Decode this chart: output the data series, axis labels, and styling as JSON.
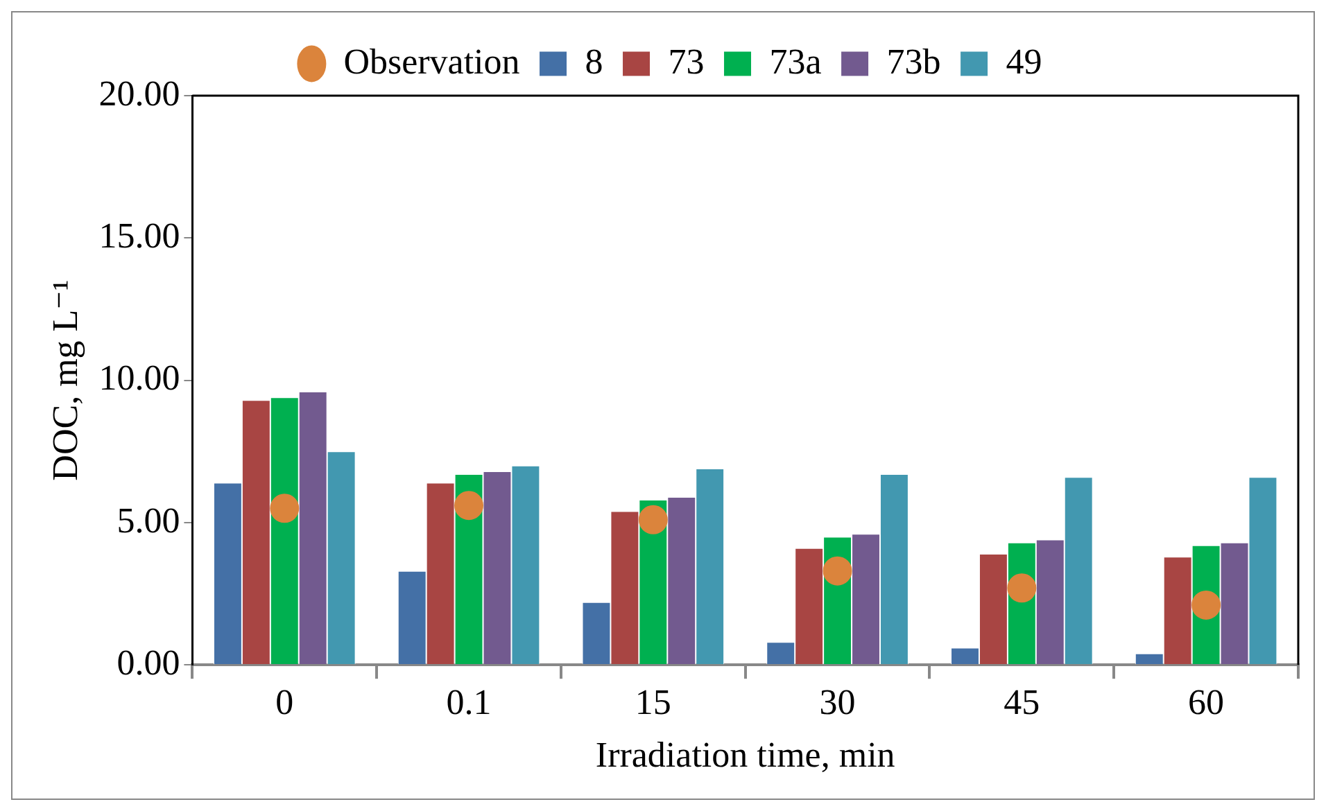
{
  "chart_data": {
    "type": "bar",
    "xlabel": "Irradiation time, min",
    "ylabel": "DOC, mg L⁻¹",
    "categories": [
      "0",
      "0.1",
      "15",
      "30",
      "45",
      "60"
    ],
    "series": [
      {
        "name": "8",
        "color": "#4470a6",
        "values": [
          6.4,
          3.3,
          2.2,
          0.8,
          0.6,
          0.4
        ]
      },
      {
        "name": "73",
        "color": "#a84543",
        "values": [
          9.3,
          6.4,
          5.4,
          4.1,
          3.9,
          3.8
        ]
      },
      {
        "name": "73a",
        "color": "#00b050",
        "values": [
          9.4,
          6.7,
          5.8,
          4.5,
          4.3,
          4.2
        ]
      },
      {
        "name": "73b",
        "color": "#725a8f",
        "values": [
          9.6,
          6.8,
          5.9,
          4.6,
          4.4,
          4.3
        ]
      },
      {
        "name": "49",
        "color": "#4298b0",
        "values": [
          7.5,
          7.0,
          6.9,
          6.7,
          6.6,
          6.6
        ]
      },
      {
        "name": "Observation",
        "type": "scatter",
        "marker": "circle",
        "color": "#db843c",
        "x": [
          "0",
          "0.1",
          "15",
          "30",
          "45",
          "60"
        ],
        "values": [
          5.5,
          5.6,
          5.1,
          3.3,
          2.7,
          2.1
        ]
      }
    ],
    "ylim": [
      0,
      20
    ],
    "yticks": [
      {
        "value": 0,
        "label": "0.00"
      },
      {
        "value": 5,
        "label": "5.00"
      },
      {
        "value": 10,
        "label": "10.00"
      },
      {
        "value": 15,
        "label": "15.00"
      },
      {
        "value": 20,
        "label": "20.00"
      }
    ],
    "grid": false,
    "legend": "top"
  }
}
